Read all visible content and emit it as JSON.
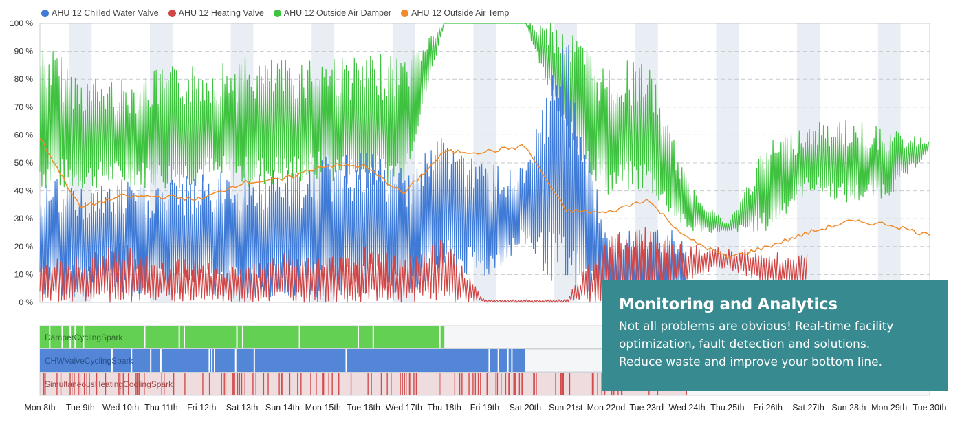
{
  "legend": [
    {
      "name": "AHU 12 Chilled Water Valve",
      "color": "#3f7bd6"
    },
    {
      "name": "AHU 12 Heating Valve",
      "color": "#d04545"
    },
    {
      "name": "AHU 12 Outside Air Damper",
      "color": "#3fc23f"
    },
    {
      "name": "AHU 12 Outside Air Temp",
      "color": "#f08a2a"
    }
  ],
  "overlay": {
    "title": "Monitoring and Analytics",
    "lines": [
      "Not all problems are obvious! Real-time facility",
      "optimization, fault detection and solutions.",
      "Reduce waste and improve your bottom line."
    ]
  },
  "chart_data": {
    "type": "line",
    "ylim": [
      0,
      100
    ],
    "yticks": [
      "0 %",
      "10 %",
      "20 %",
      "30 %",
      "40 %",
      "50 %",
      "60 %",
      "70 %",
      "80 %",
      "90 %",
      "100 %"
    ],
    "x": [
      "Mon 8th",
      "Tue 9th",
      "Wed 10th",
      "Thu 11th",
      "Fri 12th",
      "Sat 13th",
      "Sun 14th",
      "Mon 15th",
      "Tue 16th",
      "Wed 17th",
      "Thu 18th",
      "Fri 19th",
      "Sat 20th",
      "Sun 21st",
      "Mon 22nd",
      "Tue 23rd",
      "Wed 24th",
      "Thu 25th",
      "Fri 26th",
      "Sat 27th",
      "Sun 28th",
      "Mon 29th",
      "Tue 30th"
    ],
    "grid": true,
    "legend_position": "top-left",
    "series": [
      {
        "name": "AHU 12 Outside Air Damper",
        "color": "#3fc23f",
        "daily_min": [
          40,
          40,
          42,
          40,
          42,
          41,
          42,
          43,
          41,
          42,
          100,
          100,
          100,
          57,
          38,
          40,
          25,
          25,
          25,
          40,
          35,
          38,
          54
        ],
        "daily_max": [
          96,
          82,
          80,
          84,
          86,
          88,
          87,
          90,
          88,
          90,
          100,
          100,
          100,
          100,
          85,
          88,
          44,
          28,
          58,
          64,
          66,
          62,
          58
        ]
      },
      {
        "name": "AHU 12 Chilled Water Valve",
        "color": "#3f7bd6",
        "daily_min": [
          2,
          2,
          2,
          2,
          2,
          2,
          2,
          2,
          2,
          2,
          10,
          8,
          20,
          0,
          0,
          0,
          null,
          null,
          null,
          null,
          null,
          null,
          null
        ],
        "daily_max": [
          46,
          42,
          44,
          44,
          46,
          48,
          48,
          52,
          54,
          50,
          62,
          50,
          48,
          100,
          26,
          26,
          null,
          null,
          null,
          null,
          null,
          null,
          null
        ]
      },
      {
        "name": "AHU 12 Heating Valve",
        "color": "#d04545",
        "daily_min": [
          0,
          0,
          0,
          0,
          0,
          0,
          0,
          0,
          0,
          0,
          0,
          0,
          0,
          0,
          0,
          0,
          8,
          12,
          6,
          null,
          null,
          null,
          null
        ],
        "daily_max": [
          18,
          16,
          22,
          16,
          15,
          12,
          20,
          16,
          20,
          16,
          24,
          1,
          1,
          1,
          24,
          27,
          21,
          20,
          18,
          null,
          null,
          null,
          null
        ]
      },
      {
        "name": "AHU 12 Outside Air Temp",
        "color": "#f08a2a",
        "values": [
          59,
          34,
          38,
          38,
          37,
          43,
          44,
          49,
          49,
          39,
          54,
          54,
          56,
          33,
          32,
          37,
          23,
          16,
          20,
          25,
          29,
          28,
          24
        ]
      }
    ],
    "sparklines": [
      {
        "label": "DamperCyclingSpark",
        "color": "#5ccd4a",
        "active_until": "Thu 18th"
      },
      {
        "label": "CHWValveCyclingSpark",
        "color": "#4a80d4",
        "active_until": "Sat 20th"
      },
      {
        "label": "SimultaneousHeatingCoolingSpark",
        "color": "#d14c4c",
        "active_until": "Wed 24th"
      }
    ]
  }
}
